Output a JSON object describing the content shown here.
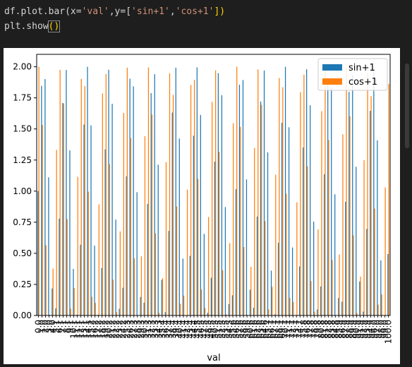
{
  "code": {
    "line1": {
      "prefix": "df.plot.bar(x=",
      "str1": "'val'",
      "mid1": ",y=[",
      "str2": "'sin+1'",
      "comma": ",",
      "str3": "'cos+1'",
      "suffix": "])"
    },
    "line2": {
      "prefix": "plt.show",
      "parens": "()"
    }
  },
  "chart_data": {
    "type": "bar",
    "xlabel": "val",
    "ylabel": "",
    "ylim": [
      0,
      2.1
    ],
    "yticks": [
      "0.00",
      "0.25",
      "0.50",
      "0.75",
      "1.00",
      "1.25",
      "1.50",
      "1.75",
      "2.00"
    ],
    "x_first_label": "0.0",
    "x_last_label": "100.0",
    "x_count": 100,
    "x_start": 0,
    "x_end": 100,
    "legend_position": "upper right",
    "series": [
      {
        "name": "sin+1",
        "formula": "sin(val)+1",
        "color": "#1f77b4"
      },
      {
        "name": "cos+1",
        "formula": "cos(val)+1",
        "color": "#ff7f0e"
      }
    ],
    "grid": false
  }
}
